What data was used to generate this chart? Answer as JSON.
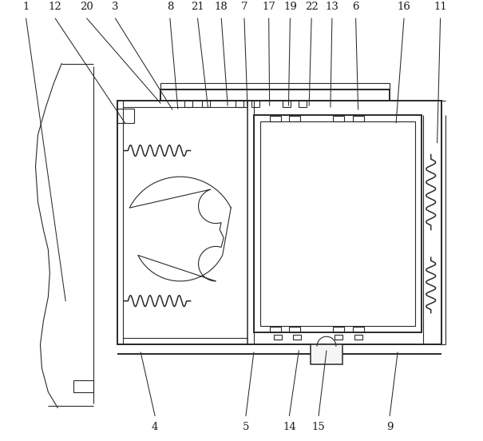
{
  "bg_color": "#ffffff",
  "lc": "#2a2a2a",
  "lw_main": 1.4,
  "lw_thin": 0.8,
  "lw_med": 1.1,
  "fig_w": 6.05,
  "fig_h": 5.52,
  "top_labels": [
    [
      "1",
      30
    ],
    [
      "12",
      68
    ],
    [
      "20",
      108
    ],
    [
      "3",
      145
    ],
    [
      "8",
      213
    ],
    [
      "21",
      247
    ],
    [
      "18",
      277
    ],
    [
      "7",
      307
    ],
    [
      "17",
      338
    ],
    [
      "19",
      365
    ],
    [
      "22",
      392
    ],
    [
      "13",
      418
    ],
    [
      "6",
      448
    ],
    [
      "16",
      510
    ],
    [
      "11",
      555
    ]
  ],
  "bot_labels": [
    [
      "4",
      195
    ],
    [
      "5",
      310
    ],
    [
      "14",
      365
    ],
    [
      "15",
      400
    ],
    [
      "9",
      490
    ]
  ]
}
